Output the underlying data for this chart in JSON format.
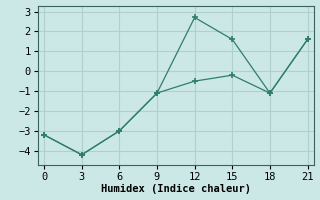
{
  "line1_x": [
    0,
    3,
    6,
    9,
    12,
    15,
    18,
    21
  ],
  "line1_y": [
    -3.2,
    -4.2,
    -3.0,
    -1.1,
    2.7,
    1.6,
    -1.1,
    1.6
  ],
  "line2_x": [
    0,
    3,
    6,
    9,
    12,
    15,
    18,
    21
  ],
  "line2_y": [
    -3.2,
    -4.2,
    -3.0,
    -1.1,
    -0.5,
    -0.2,
    -1.1,
    1.6
  ],
  "line_color": "#2e7d6e",
  "bg_color": "#cce8e6",
  "grid_color": "#b0d0ce",
  "xlabel": "Humidex (Indice chaleur)",
  "xlim": [
    -0.5,
    21.5
  ],
  "ylim": [
    -4.7,
    3.3
  ],
  "xticks": [
    0,
    3,
    6,
    9,
    12,
    15,
    18,
    21
  ],
  "yticks": [
    -4,
    -3,
    -2,
    -1,
    0,
    1,
    2,
    3
  ],
  "font_size": 7.5
}
